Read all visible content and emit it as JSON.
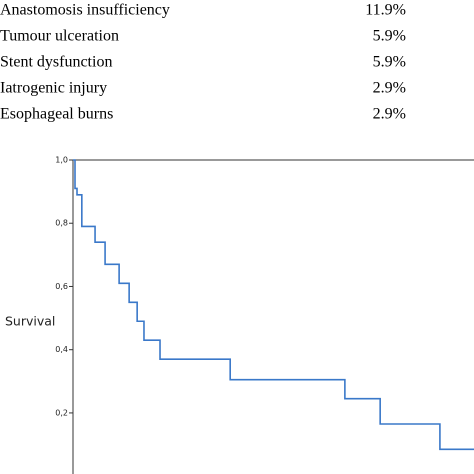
{
  "table": {
    "rows": [
      [
        "Anastomosis insufficiency",
        "11.9%"
      ],
      [
        "Tumour ulceration",
        "5.9%"
      ],
      [
        "Stent dysfunction",
        "5.9%"
      ],
      [
        "Iatrogenic injury",
        "2.9%"
      ],
      [
        "Esophageal burns",
        "2.9%"
      ]
    ]
  },
  "chart_data": {
    "type": "line",
    "step": true,
    "y_label": "Survival",
    "x": [
      0,
      0.5,
      1,
      2.2,
      5.5,
      8,
      11.5,
      14,
      16,
      17.7,
      21.7,
      39.2,
      67.8,
      76.6,
      91.5
    ],
    "series": [
      {
        "color": "#3a78c9",
        "values": [
          1,
          0.91,
          0.89,
          0.79,
          0.74,
          0.67,
          0.61,
          0.55,
          0.49,
          0.43,
          0.37,
          0.305,
          0.245,
          0.165,
          0.085
        ]
      }
    ],
    "xlim": [
      0,
      100
    ],
    "ylim": [
      0.01,
      1.0
    ],
    "yticks": [
      {
        "value": 1.0,
        "label": "1,0"
      },
      {
        "value": 0.8,
        "label": "0,8"
      },
      {
        "value": 0.6,
        "label": "0,6"
      },
      {
        "value": 0.4,
        "label": "0,4"
      },
      {
        "value": 0.2,
        "label": "0,2"
      }
    ]
  }
}
